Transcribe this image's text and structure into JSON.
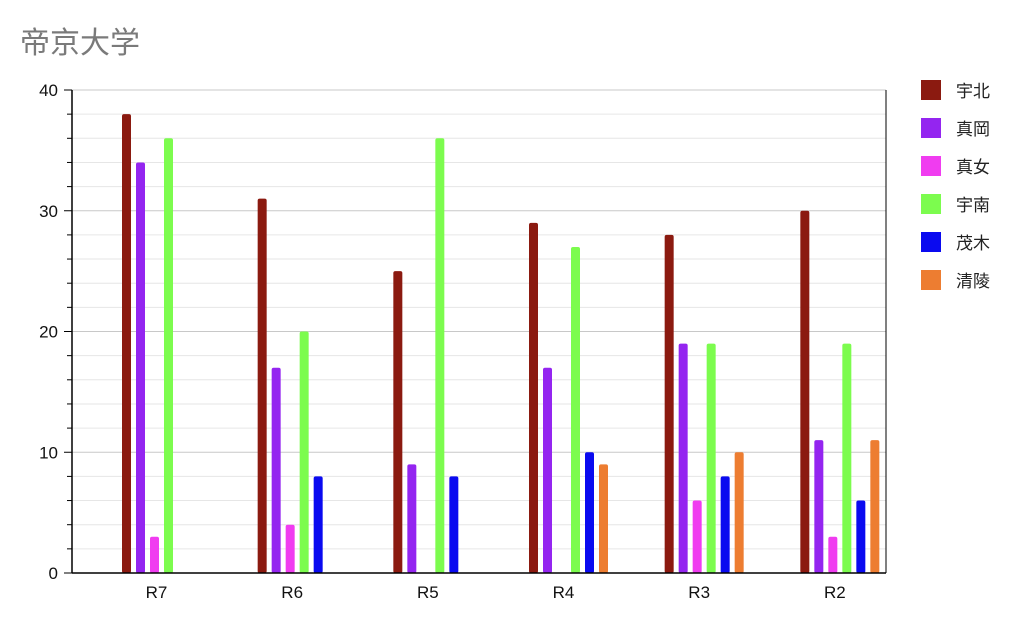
{
  "chart_data": {
    "type": "bar",
    "title": "帝京大学",
    "categories": [
      "R7",
      "R6",
      "R5",
      "R4",
      "R3",
      "R2"
    ],
    "series": [
      {
        "name": "宇北",
        "color": "#8b1a10",
        "values": [
          38,
          31,
          25,
          29,
          28,
          30
        ]
      },
      {
        "name": "真岡",
        "color": "#9425f0",
        "values": [
          34,
          17,
          9,
          17,
          19,
          11
        ]
      },
      {
        "name": "真女",
        "color": "#f03cf0",
        "values": [
          3,
          4,
          null,
          null,
          6,
          3
        ]
      },
      {
        "name": "宇南",
        "color": "#7cfc4e",
        "values": [
          36,
          20,
          36,
          27,
          19,
          19
        ]
      },
      {
        "name": "茂木",
        "color": "#0a0af0",
        "values": [
          null,
          8,
          8,
          10,
          8,
          6
        ]
      },
      {
        "name": "清陵",
        "color": "#ed7d31",
        "values": [
          null,
          null,
          null,
          9,
          10,
          11
        ]
      }
    ],
    "xlabel": "",
    "ylabel": "",
    "ylim": [
      0,
      40
    ],
    "yticks": [
      0,
      10,
      20,
      30,
      40
    ],
    "grid": true,
    "legend": "right"
  }
}
